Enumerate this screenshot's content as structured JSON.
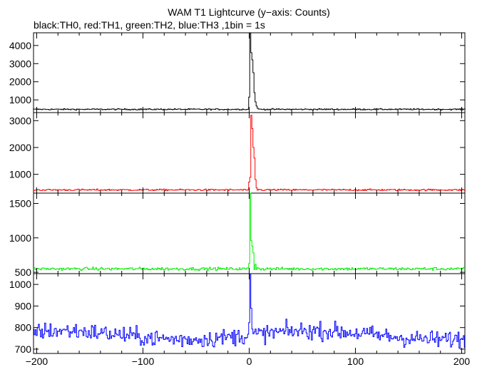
{
  "title": "WAM T1 Lightcurve (y−axis: Counts)",
  "subtitle": "black:TH0, red:TH1, green:TH2, blue:TH3 ,1bin = 1s",
  "chart_data": {
    "type": "line",
    "title": "WAM T1 Lightcurve (y−axis: Counts)",
    "subtitle": "black:TH0, red:TH1, green:TH2, blue:TH3 ,1bin = 1s",
    "bin_seconds": 1,
    "xlim": [
      -203,
      203
    ],
    "x_ticks": [
      -200,
      -100,
      0,
      100,
      200
    ],
    "x_tick_labels": [
      "−200",
      "−100",
      "0",
      "100",
      "200"
    ],
    "grid": false,
    "panels": [
      {
        "name": "TH0",
        "color": "#000000",
        "ylim": [
          300,
          4700
        ],
        "yticks": [
          1000,
          2000,
          3000,
          4000
        ],
        "baseline": 480,
        "noise": 25,
        "peak_time": 2,
        "profile": [
          [
            -1,
            480
          ],
          [
            0,
            1150
          ],
          [
            1,
            4700
          ],
          [
            2,
            3600
          ],
          [
            3,
            3200
          ],
          [
            4,
            2500
          ],
          [
            5,
            1400
          ],
          [
            6,
            900
          ],
          [
            7,
            650
          ],
          [
            8,
            540
          ],
          [
            10,
            500
          ]
        ]
      },
      {
        "name": "TH1",
        "color": "#ff0000",
        "ylim": [
          300,
          3300
        ],
        "yticks": [
          1000,
          2000,
          3000
        ],
        "baseline": 420,
        "noise": 22,
        "peak_time": 3,
        "profile": [
          [
            -1,
            420
          ],
          [
            0,
            700
          ],
          [
            1,
            880
          ],
          [
            2,
            3200
          ],
          [
            3,
            2700
          ],
          [
            4,
            2000
          ],
          [
            5,
            1600
          ],
          [
            6,
            800
          ],
          [
            7,
            500
          ],
          [
            9,
            440
          ]
        ]
      },
      {
        "name": "TH2",
        "color": "#00ee00",
        "ylim": [
          480,
          1650
        ],
        "yticks": [
          500,
          1000,
          1500
        ],
        "baseline": 550,
        "noise": 15,
        "peak_time": 2,
        "profile": [
          [
            -1,
            560
          ],
          [
            0,
            620
          ],
          [
            1,
            1700
          ],
          [
            2,
            960
          ],
          [
            3,
            880
          ],
          [
            4,
            780
          ],
          [
            6,
            620
          ],
          [
            8,
            570
          ]
        ]
      },
      {
        "name": "TH3",
        "color": "#0000ff",
        "ylim": [
          680,
          1050
        ],
        "yticks": [
          700,
          800,
          900,
          1000
        ],
        "baseline": 765,
        "noise": 28,
        "peak_time": 1,
        "profile": [
          [
            0,
            820
          ],
          [
            1,
            1070
          ],
          [
            2,
            880
          ],
          [
            3,
            790
          ]
        ]
      }
    ]
  }
}
